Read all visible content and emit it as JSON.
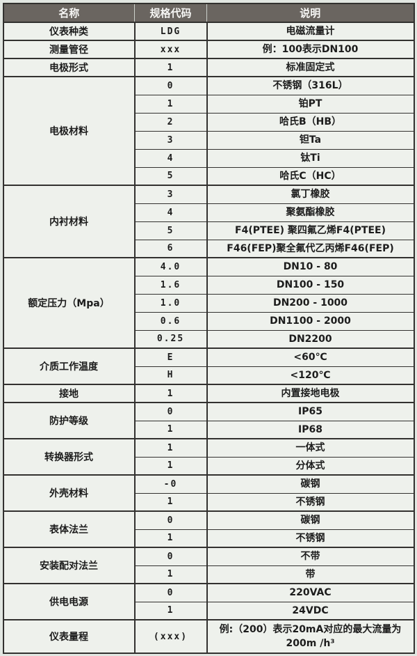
{
  "colors": {
    "page_bg": "#e2e7e2",
    "cell_bg": "#eef1ec",
    "header_bg": "#6a6560",
    "header_text": "#f6f6f4",
    "border": "#32312f",
    "text": "#1c1c1c"
  },
  "header": {
    "name": "名称",
    "code": "规格代码",
    "desc": "说明"
  },
  "groups": [
    {
      "name": "仪表种类",
      "rows": [
        {
          "code": "LDG",
          "desc": "电磁流量计"
        }
      ]
    },
    {
      "name": "测量管径",
      "rows": [
        {
          "code": "xxx",
          "desc": "例：100表示DN100"
        }
      ]
    },
    {
      "name": "电极形式",
      "rows": [
        {
          "code": "1",
          "desc": "标准固定式"
        }
      ]
    },
    {
      "name": "电极材料",
      "rows": [
        {
          "code": "0",
          "desc": "不锈钢（316L）"
        },
        {
          "code": "1",
          "desc": "铂PT"
        },
        {
          "code": "2",
          "desc": "哈氏B（HB）"
        },
        {
          "code": "3",
          "desc": "钽Ta"
        },
        {
          "code": "4",
          "desc": "钛Ti"
        },
        {
          "code": "5",
          "desc": "哈氏C（HC）"
        }
      ]
    },
    {
      "name": "内衬材料",
      "rows": [
        {
          "code": "3",
          "desc": "氯丁橡胶"
        },
        {
          "code": "4",
          "desc": "聚氨酯橡胶"
        },
        {
          "code": "5",
          "desc": "F4(PTEE) 聚四氟乙烯F4(PTEE)"
        },
        {
          "code": "6",
          "desc": "F46(FEP)聚全氟代乙丙烯F46(FEP)"
        }
      ]
    },
    {
      "name": "额定压力（Mpa）",
      "rows": [
        {
          "code": "4.0",
          "desc": "DN10 - 80"
        },
        {
          "code": "1.6",
          "desc": "DN100 - 150"
        },
        {
          "code": "1.0",
          "desc": "DN200 - 1000"
        },
        {
          "code": "0.6",
          "desc": "DN1100 - 2000"
        },
        {
          "code": "0.25",
          "desc": "DN2200"
        }
      ]
    },
    {
      "name": "介质工作温度",
      "rows": [
        {
          "code": "E",
          "desc": "<60℃"
        },
        {
          "code": "H",
          "desc": "<120℃"
        }
      ]
    },
    {
      "name": "接地",
      "rows": [
        {
          "code": "1",
          "desc": "内置接地电极"
        }
      ]
    },
    {
      "name": "防护等级",
      "rows": [
        {
          "code": "0",
          "desc": "IP65"
        },
        {
          "code": "1",
          "desc": "IP68"
        }
      ]
    },
    {
      "name": "转换器形式",
      "rows": [
        {
          "code": "1",
          "desc": "一体式"
        },
        {
          "code": "1",
          "desc": "分体式"
        }
      ]
    },
    {
      "name": "外壳材料",
      "rows": [
        {
          "code": "-0",
          "desc": "碳钢"
        },
        {
          "code": "1",
          "desc": "不锈钢"
        }
      ]
    },
    {
      "name": "表体法兰",
      "rows": [
        {
          "code": "0",
          "desc": "碳钢"
        },
        {
          "code": "1",
          "desc": "不锈钢"
        }
      ]
    },
    {
      "name": "安装配对法兰",
      "rows": [
        {
          "code": "0",
          "desc": "不带"
        },
        {
          "code": "1",
          "desc": "带"
        }
      ]
    },
    {
      "name": "供电电源",
      "rows": [
        {
          "code": "0",
          "desc": "220VAC"
        },
        {
          "code": "1",
          "desc": "24VDC"
        }
      ]
    },
    {
      "name": "仪表量程",
      "rows": [
        {
          "code": "(xxx)",
          "desc": "例:（200）表示20mA对应的最大流量为200m /h³"
        }
      ]
    }
  ]
}
